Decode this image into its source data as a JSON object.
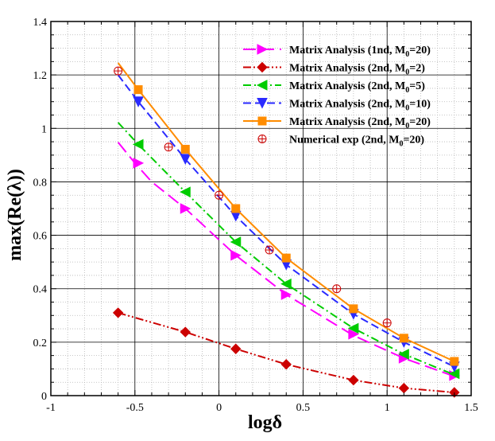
{
  "chart_data": {
    "type": "line",
    "xlabel": "logδ",
    "ylabel": "max(Re(λ))",
    "xlim": [
      -1,
      1.5
    ],
    "ylim": [
      0,
      1.4
    ],
    "x_ticks": [
      -1,
      -0.5,
      0,
      0.5,
      1,
      1.5
    ],
    "x_tick_labels": [
      "-1",
      "-0.5",
      "0",
      "0.5",
      "1",
      "1.5"
    ],
    "y_ticks": [
      0,
      0.2,
      0.4,
      0.6,
      0.8,
      1,
      1.2,
      1.4
    ],
    "y_tick_labels": [
      "0",
      "0.2",
      "0.4",
      "0.6",
      "0.8",
      "1",
      "1.2",
      "1.4"
    ],
    "grid": true,
    "legend_position": "top-right",
    "series": [
      {
        "name": "Matrix Analysis (1nd, M0=20)",
        "legend_main": "Matrix Analysis (1nd, M",
        "legend_sub": "0",
        "legend_tail": "=20)",
        "color": "#ff00ff",
        "dash": "long-dash",
        "marker": "triangle-right",
        "curve_x": [
          -0.6,
          -0.5,
          -0.4,
          -0.2,
          0.1,
          0.4,
          0.8,
          1.1,
          1.4
        ],
        "curve_y": [
          0.948,
          0.87,
          0.8,
          0.7,
          0.525,
          0.378,
          0.225,
          0.14,
          0.072
        ],
        "marker_x": [
          -0.48,
          -0.2,
          0.1,
          0.4,
          0.8,
          1.1,
          1.4
        ],
        "marker_y": [
          0.87,
          0.7,
          0.525,
          0.378,
          0.23,
          0.14,
          0.075
        ]
      },
      {
        "name": "Matrix Analysis (2nd, M0=2)",
        "legend_main": "Matrix Analysis (2nd, M",
        "legend_sub": "0",
        "legend_tail": "=2)",
        "color": "#cc0000",
        "dash": "dash-dot-dot",
        "marker": "diamond",
        "curve_x": [
          -0.6,
          -0.2,
          0.1,
          0.4,
          0.8,
          1.1,
          1.4
        ],
        "curve_y": [
          0.31,
          0.238,
          0.175,
          0.117,
          0.058,
          0.028,
          0.012
        ],
        "marker_x": [
          -0.6,
          -0.2,
          0.1,
          0.4,
          0.8,
          1.1,
          1.4
        ],
        "marker_y": [
          0.31,
          0.238,
          0.175,
          0.117,
          0.058,
          0.028,
          0.012
        ]
      },
      {
        "name": "Matrix Analysis (2nd, M0=5)",
        "legend_main": "Matrix Analysis (2nd, M",
        "legend_sub": "0",
        "legend_tail": "=5)",
        "color": "#00cc00",
        "dash": "dash-dot",
        "marker": "triangle-left",
        "curve_x": [
          -0.6,
          -0.48,
          -0.2,
          0.1,
          0.4,
          0.8,
          1.1,
          1.4
        ],
        "curve_y": [
          1.022,
          0.94,
          0.762,
          0.575,
          0.418,
          0.252,
          0.155,
          0.078
        ],
        "marker_x": [
          -0.48,
          -0.2,
          0.1,
          0.4,
          0.8,
          1.1,
          1.4
        ],
        "marker_y": [
          0.94,
          0.762,
          0.575,
          0.418,
          0.252,
          0.155,
          0.082
        ]
      },
      {
        "name": "Matrix Analysis (2nd, M0=10)",
        "legend_main": "Matrix Analysis (2nd, M",
        "legend_sub": "0",
        "legend_tail": "=10)",
        "color": "#2a2aff",
        "dash": "dash",
        "marker": "triangle-down",
        "curve_x": [
          -0.6,
          -0.48,
          -0.2,
          0.1,
          0.4,
          0.8,
          1.1,
          1.4
        ],
        "curve_y": [
          1.2,
          1.1,
          0.885,
          0.672,
          0.49,
          0.305,
          0.2,
          0.108
        ],
        "marker_x": [
          -0.48,
          -0.2,
          0.1,
          0.4,
          0.8,
          1.1,
          1.4
        ],
        "marker_y": [
          1.1,
          0.885,
          0.672,
          0.49,
          0.305,
          0.2,
          0.108
        ]
      },
      {
        "name": "Matrix Analysis (2nd, M0=20)",
        "legend_main": "Matrix Analysis (2nd, M",
        "legend_sub": "0",
        "legend_tail": "=20)",
        "color": "#ff8c00",
        "dash": "solid",
        "marker": "square",
        "curve_x": [
          -0.6,
          -0.48,
          -0.2,
          0.1,
          0.4,
          0.8,
          1.1,
          1.4
        ],
        "curve_y": [
          1.245,
          1.145,
          0.922,
          0.7,
          0.515,
          0.325,
          0.215,
          0.128
        ],
        "marker_x": [
          -0.48,
          -0.2,
          0.1,
          0.4,
          0.8,
          1.1,
          1.4
        ],
        "marker_y": [
          1.145,
          0.922,
          0.7,
          0.515,
          0.325,
          0.215,
          0.128
        ]
      },
      {
        "name": "Numerical exp (2nd, M0=20)",
        "legend_main": "Numerical exp   (2nd, M",
        "legend_sub": "0",
        "legend_tail": "=20)",
        "color": "#cc0000",
        "dash": "none",
        "marker": "circle-plus",
        "curve_x": [],
        "curve_y": [],
        "marker_x": [
          -0.6,
          -0.3,
          0,
          0.3,
          0.7,
          1.0
        ],
        "marker_y": [
          1.215,
          0.93,
          0.75,
          0.545,
          0.4,
          0.272
        ]
      }
    ]
  }
}
